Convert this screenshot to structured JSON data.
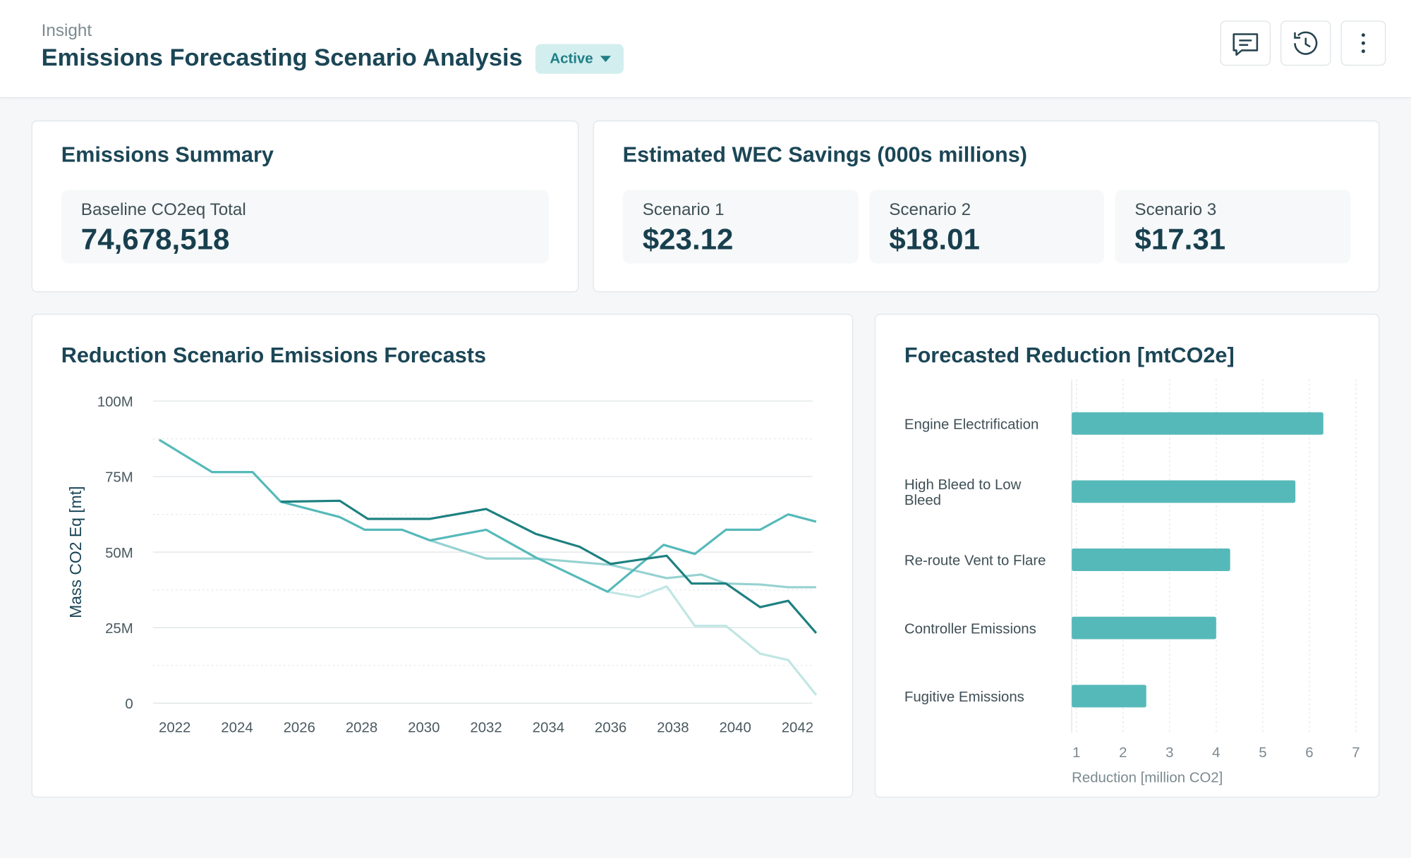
{
  "header": {
    "breadcrumb": "Insight",
    "title": "Emissions Forecasting Scenario Analysis",
    "status": "Active"
  },
  "summary": {
    "title": "Emissions Summary",
    "metrics": [
      {
        "label": "Baseline CO2eq Total",
        "value": "74,678,518"
      }
    ]
  },
  "savings": {
    "title": "Estimated WEC Savings (000s millions)",
    "metrics": [
      {
        "label": "Scenario 1",
        "value": "$23.12"
      },
      {
        "label": "Scenario 2",
        "value": "$18.01"
      },
      {
        "label": "Scenario 3",
        "value": "$17.31"
      }
    ]
  },
  "chart_data": [
    {
      "type": "line",
      "title": "Reduction Scenario Emissions Forecasts",
      "ylabel": "Mass CO2 Eq [mt]",
      "xlim": [
        2021.3,
        2042.6
      ],
      "xticks": [
        2022,
        2024,
        2026,
        2028,
        2030,
        2032,
        2034,
        2036,
        2038,
        2040,
        2042
      ],
      "ylim": [
        0,
        100000000
      ],
      "yticks": [
        {
          "value": 0,
          "label": "0"
        },
        {
          "value": 25000000,
          "label": "25M"
        },
        {
          "value": 50000000,
          "label": "50M"
        },
        {
          "value": 75000000,
          "label": "75M"
        },
        {
          "value": 100000000,
          "label": "100M"
        }
      ],
      "minor_yticks": [
        12500000,
        37500000,
        62500000,
        87500000
      ],
      "grid": true,
      "series": [
        {
          "color": "#c0e6e4",
          "x": [
            2035.9,
            2036.9,
            2037.8,
            2038.7,
            2039.7,
            2040.8,
            2041.7,
            2042.6
          ],
          "values": [
            36900000,
            35100000,
            38700000,
            25600000,
            25600000,
            16400000,
            14300000,
            2700000
          ]
        },
        {
          "color": "#96d2d1",
          "x": [
            2030.2,
            2032,
            2033.6,
            2036,
            2037.8,
            2038.9,
            2039.7,
            2040.8,
            2041.7,
            2042.6
          ],
          "values": [
            53900000,
            47900000,
            47900000,
            45800000,
            41400000,
            42600000,
            39600000,
            39300000,
            38400000,
            38400000
          ]
        },
        {
          "color": "#56b9b9",
          "x": [
            2021.5,
            2023.2,
            2024.5,
            2025.4,
            2027.3,
            2028.1,
            2029.3,
            2030.2,
            2032,
            2033.6,
            2035.9,
            2037.7,
            2038.7,
            2039.7,
            2040.8,
            2041.7,
            2042.6
          ],
          "values": [
            87200000,
            76500000,
            76500000,
            66700000,
            61600000,
            57400000,
            57400000,
            53900000,
            57400000,
            48200000,
            36900000,
            52400000,
            49400000,
            57400000,
            57400000,
            62500000,
            60100000
          ]
        },
        {
          "color": "#1e8080",
          "x": [
            2025.4,
            2027.3,
            2028.2,
            2030.2,
            2032,
            2033.6,
            2035,
            2036,
            2037.8,
            2038.6,
            2039.7,
            2040.8,
            2041.7,
            2042.6
          ],
          "values": [
            66700000,
            67000000,
            61000000,
            61000000,
            64300000,
            56000000,
            51800000,
            46100000,
            48800000,
            39600000,
            39600000,
            31800000,
            33900000,
            23200000
          ]
        }
      ]
    },
    {
      "type": "bar",
      "orientation": "horizontal",
      "title": "Forecasted Reduction [mtCO2e]",
      "xlabel": "Reduction [million CO2]",
      "categories": [
        "Engine Electrification",
        "High Bleed to Low Bleed",
        "Re-route Vent to Flare",
        "Controller Emissions",
        "Fugitive Emissions"
      ],
      "values": [
        6.3,
        5.7,
        4.3,
        4.0,
        2.5
      ],
      "color": "#56b9b9",
      "xlim": [
        0.9,
        7.1
      ],
      "xticks": [
        1,
        2,
        3,
        4,
        5,
        6,
        7
      ],
      "grid": true
    }
  ]
}
